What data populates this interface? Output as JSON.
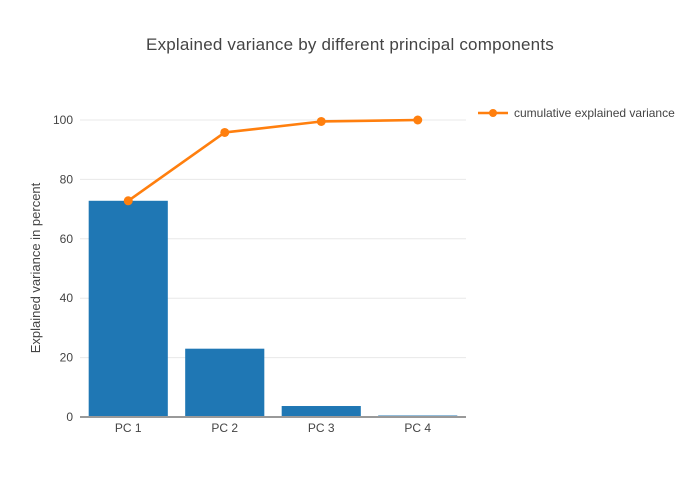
{
  "chart": {
    "title": "Explained variance by different principal components",
    "y_axis_title": "Explained variance in percent",
    "legend": [
      {
        "label": "cumulative explained variance",
        "color": "#ff7f0e"
      }
    ]
  },
  "colors": {
    "bar": "#1f77b4",
    "line": "#ff7f0e",
    "grid": "#e8e8e8",
    "zero_line": "#999999",
    "text": "#444444",
    "background": "#ffffff"
  },
  "chart_data": {
    "type": "bar",
    "categories": [
      "PC 1",
      "PC 2",
      "PC 3",
      "PC 4"
    ],
    "series": [
      {
        "type": "bar",
        "color": "#1f77b4",
        "values": [
          72.8,
          23.0,
          3.7,
          0.5
        ],
        "in_legend": false
      },
      {
        "type": "line",
        "name": "cumulative explained variance",
        "color": "#ff7f0e",
        "values": [
          72.8,
          95.8,
          99.5,
          100.0
        ],
        "in_legend": true
      }
    ],
    "title": "Explained variance by different principal components",
    "xlabel": "",
    "ylabel": "Explained variance in percent",
    "ylim": [
      0,
      105
    ],
    "yticks": [
      0,
      20,
      40,
      60,
      80,
      100
    ],
    "grid": true,
    "legend_position": "top-right-outside"
  }
}
